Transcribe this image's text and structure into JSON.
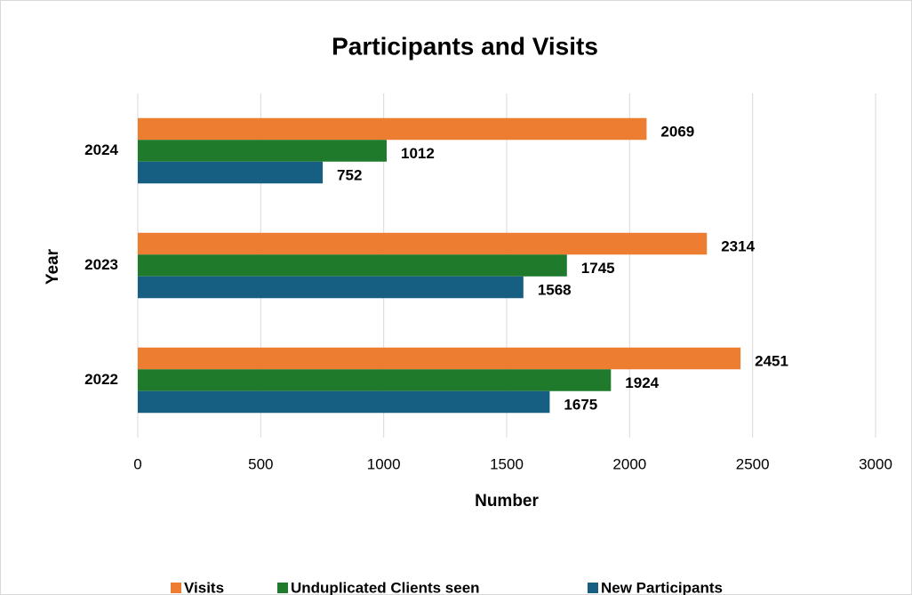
{
  "chart_data": {
    "type": "bar",
    "orientation": "horizontal",
    "title": "Participants and Visits",
    "x_label": "Number",
    "y_label": "Year",
    "categories": [
      "2022",
      "2023",
      "2024"
    ],
    "series": [
      {
        "name": "Visits",
        "color": "#ed7d31",
        "values": [
          2451,
          2314,
          2069
        ]
      },
      {
        "name": "Unduplicated Clients seen",
        "color": "#1f7a2c",
        "values": [
          1924,
          1745,
          1012
        ]
      },
      {
        "name": "New Participants",
        "color": "#165f82",
        "values": [
          1675,
          1568,
          752
        ]
      }
    ],
    "xlim": [
      0,
      3000
    ],
    "xticks": [
      0,
      500,
      1000,
      1500,
      2000,
      2500,
      3000
    ],
    "grid": true,
    "legend": "bottom"
  }
}
